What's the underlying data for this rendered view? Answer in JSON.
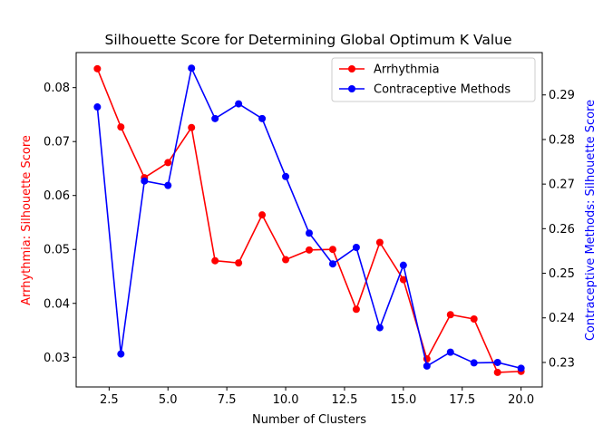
{
  "chart_data": {
    "type": "line",
    "title": "Silhouette Score for Determining Global Optimum K Value",
    "xlabel": "Number of Clusters",
    "ylabel_left": "Arrhythmia: Silhouette Score",
    "ylabel_right": "Contraceptive Methods: Silhouette Score",
    "xlim": [
      1.1,
      20.9
    ],
    "ylim_left": [
      0.0245,
      0.0865
    ],
    "ylim_right": [
      0.2245,
      0.2995
    ],
    "xticks": [
      2.5,
      5.0,
      7.5,
      10.0,
      12.5,
      15.0,
      17.5,
      20.0
    ],
    "xtick_labels": [
      "2.5",
      "5.0",
      "7.5",
      "10.0",
      "12.5",
      "15.0",
      "17.5",
      "20.0"
    ],
    "yticks_left": [
      0.03,
      0.04,
      0.05,
      0.06,
      0.07,
      0.08
    ],
    "ytick_labels_left": [
      "0.03",
      "0.04",
      "0.05",
      "0.06",
      "0.07",
      "0.08"
    ],
    "yticks_right": [
      0.23,
      0.24,
      0.25,
      0.26,
      0.27,
      0.28,
      0.29
    ],
    "ytick_labels_right": [
      "0.23",
      "0.24",
      "0.25",
      "0.26",
      "0.27",
      "0.28",
      "0.29"
    ],
    "x": [
      2,
      3,
      4,
      5,
      6,
      7,
      8,
      9,
      10,
      11,
      12,
      13,
      14,
      15,
      16,
      17,
      18,
      19,
      20
    ],
    "series": [
      {
        "name": "Arrhythmia",
        "axis": "left",
        "color": "#ff0000",
        "values": [
          0.0835,
          0.0727,
          0.0633,
          0.0661,
          0.0726,
          0.0479,
          0.0475,
          0.0564,
          0.0481,
          0.0499,
          0.05,
          0.0389,
          0.0513,
          0.0444,
          0.0297,
          0.0379,
          0.0371,
          0.0272,
          0.0274
        ]
      },
      {
        "name": "Contraceptive Methods",
        "axis": "right",
        "color": "#0000ff",
        "values": [
          0.2873,
          0.2319,
          0.2707,
          0.2697,
          0.296,
          0.2847,
          0.288,
          0.2847,
          0.2717,
          0.259,
          0.2521,
          0.2558,
          0.2378,
          0.2518,
          0.2292,
          0.2323,
          0.2299,
          0.23,
          0.2287
        ]
      }
    ],
    "legend": {
      "position": "top-right"
    },
    "grid": false
  }
}
